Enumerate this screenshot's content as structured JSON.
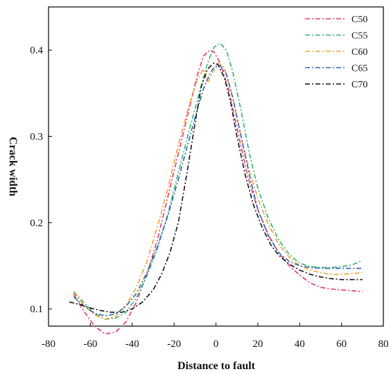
{
  "chart_data": {
    "type": "line",
    "title": "",
    "xlabel": "Distance to fault",
    "ylabel": "Crack width",
    "xlim": [
      -80,
      80
    ],
    "ylim": [
      0.08,
      0.45
    ],
    "xticks": [
      -80,
      -60,
      -40,
      -20,
      0,
      20,
      40,
      60,
      80
    ],
    "yticks": [
      0.1,
      0.2,
      0.3,
      0.4
    ],
    "grid": false,
    "legend_position": "top-right",
    "series": [
      {
        "name": "C50",
        "color": "#e8336e",
        "points": [
          [
            -68,
            0.117
          ],
          [
            -63,
            0.097
          ],
          [
            -58,
            0.08
          ],
          [
            -53,
            0.071
          ],
          [
            -48,
            0.073
          ],
          [
            -43,
            0.085
          ],
          [
            -38,
            0.108
          ],
          [
            -33,
            0.14
          ],
          [
            -28,
            0.18
          ],
          [
            -23,
            0.23
          ],
          [
            -18,
            0.28
          ],
          [
            -13,
            0.33
          ],
          [
            -9,
            0.37
          ],
          [
            -6,
            0.393
          ],
          [
            -3,
            0.4
          ],
          [
            -1,
            0.398
          ],
          [
            2,
            0.385
          ],
          [
            6,
            0.355
          ],
          [
            10,
            0.31
          ],
          [
            15,
            0.255
          ],
          [
            20,
            0.215
          ],
          [
            25,
            0.186
          ],
          [
            30,
            0.165
          ],
          [
            35,
            0.15
          ],
          [
            40,
            0.139
          ],
          [
            45,
            0.13
          ],
          [
            50,
            0.125
          ],
          [
            55,
            0.123
          ],
          [
            60,
            0.122
          ],
          [
            65,
            0.121
          ],
          [
            70,
            0.12
          ]
        ]
      },
      {
        "name": "C55",
        "color": "#2fb36a",
        "points": [
          [
            -68,
            0.12
          ],
          [
            -63,
            0.107
          ],
          [
            -58,
            0.095
          ],
          [
            -53,
            0.088
          ],
          [
            -48,
            0.089
          ],
          [
            -43,
            0.096
          ],
          [
            -38,
            0.113
          ],
          [
            -33,
            0.138
          ],
          [
            -28,
            0.17
          ],
          [
            -23,
            0.21
          ],
          [
            -18,
            0.258
          ],
          [
            -13,
            0.305
          ],
          [
            -8,
            0.35
          ],
          [
            -4,
            0.385
          ],
          [
            -1,
            0.403
          ],
          [
            2,
            0.408
          ],
          [
            5,
            0.4
          ],
          [
            8,
            0.375
          ],
          [
            12,
            0.33
          ],
          [
            16,
            0.28
          ],
          [
            20,
            0.24
          ],
          [
            25,
            0.205
          ],
          [
            30,
            0.18
          ],
          [
            35,
            0.163
          ],
          [
            40,
            0.153
          ],
          [
            45,
            0.149
          ],
          [
            50,
            0.148
          ],
          [
            55,
            0.148
          ],
          [
            60,
            0.149
          ],
          [
            65,
            0.151
          ],
          [
            70,
            0.156
          ]
        ]
      },
      {
        "name": "C60",
        "color": "#f0a030",
        "points": [
          [
            -68,
            0.119
          ],
          [
            -63,
            0.104
          ],
          [
            -58,
            0.093
          ],
          [
            -53,
            0.088
          ],
          [
            -48,
            0.091
          ],
          [
            -43,
            0.104
          ],
          [
            -38,
            0.125
          ],
          [
            -33,
            0.155
          ],
          [
            -28,
            0.195
          ],
          [
            -23,
            0.24
          ],
          [
            -18,
            0.29
          ],
          [
            -13,
            0.335
          ],
          [
            -9,
            0.365
          ],
          [
            -6,
            0.378
          ],
          [
            -4,
            0.362
          ],
          [
            -2,
            0.372
          ],
          [
            1,
            0.385
          ],
          [
            4,
            0.38
          ],
          [
            8,
            0.345
          ],
          [
            12,
            0.3
          ],
          [
            16,
            0.26
          ],
          [
            20,
            0.228
          ],
          [
            25,
            0.198
          ],
          [
            30,
            0.175
          ],
          [
            35,
            0.16
          ],
          [
            40,
            0.15
          ],
          [
            45,
            0.145
          ],
          [
            50,
            0.142
          ],
          [
            55,
            0.14
          ],
          [
            60,
            0.14
          ],
          [
            65,
            0.141
          ],
          [
            70,
            0.142
          ]
        ]
      },
      {
        "name": "C65",
        "color": "#2d5fb4",
        "points": [
          [
            -68,
            0.114
          ],
          [
            -63,
            0.103
          ],
          [
            -58,
            0.095
          ],
          [
            -53,
            0.092
          ],
          [
            -48,
            0.094
          ],
          [
            -43,
            0.103
          ],
          [
            -38,
            0.118
          ],
          [
            -33,
            0.142
          ],
          [
            -28,
            0.172
          ],
          [
            -23,
            0.208
          ],
          [
            -18,
            0.25
          ],
          [
            -13,
            0.295
          ],
          [
            -9,
            0.33
          ],
          [
            -6,
            0.355
          ],
          [
            -3,
            0.372
          ],
          [
            -1,
            0.38
          ],
          [
            2,
            0.382
          ],
          [
            5,
            0.372
          ],
          [
            8,
            0.345
          ],
          [
            12,
            0.3
          ],
          [
            16,
            0.255
          ],
          [
            20,
            0.215
          ],
          [
            25,
            0.185
          ],
          [
            30,
            0.165
          ],
          [
            35,
            0.155
          ],
          [
            40,
            0.15
          ],
          [
            45,
            0.148
          ],
          [
            50,
            0.147
          ],
          [
            55,
            0.147
          ],
          [
            60,
            0.147
          ],
          [
            65,
            0.147
          ],
          [
            70,
            0.147
          ]
        ]
      },
      {
        "name": "C70",
        "color": "#111111",
        "points": [
          [
            -70,
            0.108
          ],
          [
            -65,
            0.105
          ],
          [
            -60,
            0.101
          ],
          [
            -55,
            0.098
          ],
          [
            -50,
            0.096
          ],
          [
            -45,
            0.096
          ],
          [
            -40,
            0.1
          ],
          [
            -35,
            0.108
          ],
          [
            -30,
            0.122
          ],
          [
            -26,
            0.14
          ],
          [
            -22,
            0.165
          ],
          [
            -18,
            0.2
          ],
          [
            -14,
            0.255
          ],
          [
            -10,
            0.315
          ],
          [
            -7,
            0.358
          ],
          [
            -4,
            0.378
          ],
          [
            -1,
            0.385
          ],
          [
            1,
            0.383
          ],
          [
            4,
            0.368
          ],
          [
            7,
            0.34
          ],
          [
            10,
            0.3
          ],
          [
            14,
            0.255
          ],
          [
            18,
            0.22
          ],
          [
            22,
            0.195
          ],
          [
            26,
            0.175
          ],
          [
            30,
            0.162
          ],
          [
            35,
            0.152
          ],
          [
            40,
            0.145
          ],
          [
            45,
            0.14
          ],
          [
            50,
            0.137
          ],
          [
            55,
            0.135
          ],
          [
            60,
            0.134
          ],
          [
            65,
            0.134
          ],
          [
            70,
            0.134
          ]
        ]
      }
    ]
  }
}
